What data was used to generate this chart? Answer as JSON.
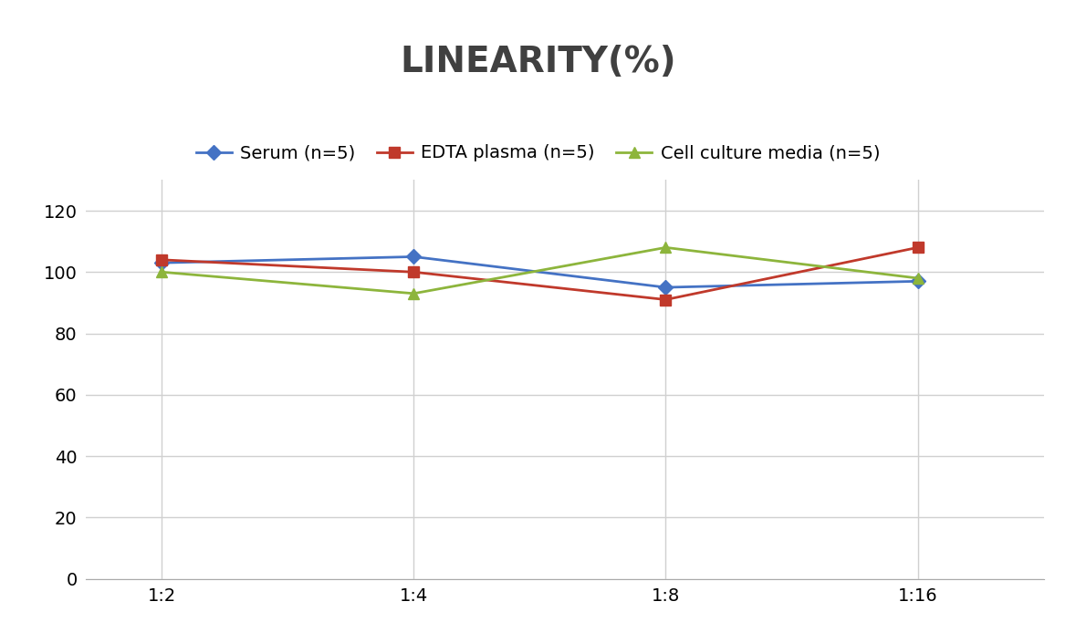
{
  "title": "LINEARITY(%)",
  "x_labels": [
    "1:2",
    "1:4",
    "1:8",
    "1:16"
  ],
  "x_positions": [
    0,
    1,
    2,
    3
  ],
  "series": [
    {
      "label": "Serum (n=5)",
      "values": [
        103,
        105,
        95,
        97
      ],
      "color": "#4472C4",
      "marker": "D",
      "markersize": 8,
      "linewidth": 2
    },
    {
      "label": "EDTA plasma (n=5)",
      "values": [
        104,
        100,
        91,
        108
      ],
      "color": "#C0392B",
      "marker": "s",
      "markersize": 8,
      "linewidth": 2
    },
    {
      "label": "Cell culture media (n=5)",
      "values": [
        100,
        93,
        108,
        98
      ],
      "color": "#8DB53C",
      "marker": "^",
      "markersize": 9,
      "linewidth": 2
    }
  ],
  "ylim": [
    0,
    130
  ],
  "yticks": [
    0,
    20,
    40,
    60,
    80,
    100,
    120
  ],
  "grid_color": "#D0D0D0",
  "background_color": "#FFFFFF",
  "title_fontsize": 28,
  "legend_fontsize": 14,
  "tick_fontsize": 14
}
